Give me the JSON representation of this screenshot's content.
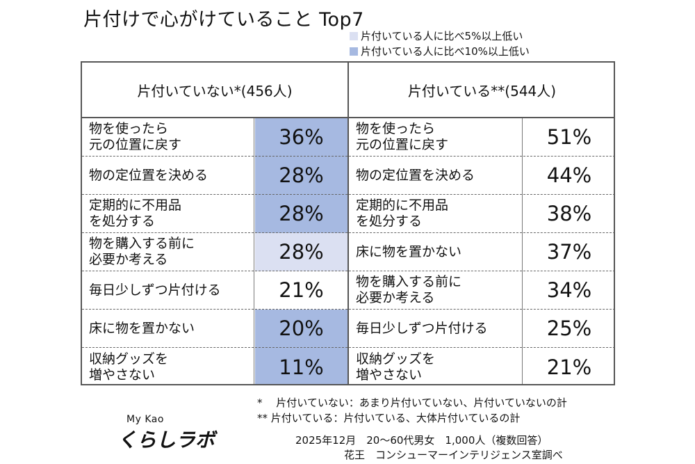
{
  "title": "片付けで心がけていること Top7",
  "legend": [
    {
      "label": "片付いている人に比べ5%以上低い",
      "color": "#dbe0f2"
    },
    {
      "label": "片付いている人に比べ10%以上低い",
      "color": "#a6b9e1"
    }
  ],
  "colors": {
    "none": "#ffffff",
    "light": "#dbe0f2",
    "strong": "#a6b9e1"
  },
  "chart_data": {
    "type": "table",
    "title": "片付けで心がけていること Top7",
    "groups": [
      {
        "header": "片付いていない*(456人)",
        "rows": [
          {
            "label": "物を使ったら\n元の位置に戻す",
            "value": 36,
            "text": "36%",
            "highlight": "strong"
          },
          {
            "label": "物の定位置を決める",
            "value": 28,
            "text": "28%",
            "highlight": "strong"
          },
          {
            "label": "定期的に不用品\nを処分する",
            "value": 28,
            "text": "28%",
            "highlight": "strong"
          },
          {
            "label": "物を購入する前に\n必要か考える",
            "value": 28,
            "text": "28%",
            "highlight": "light"
          },
          {
            "label": "毎日少しずつ片付ける",
            "value": 21,
            "text": "21%",
            "highlight": "none"
          },
          {
            "label": "床に物を置かない",
            "value": 20,
            "text": "20%",
            "highlight": "strong"
          },
          {
            "label": "収納グッズを\n増やさない",
            "value": 11,
            "text": "11%",
            "highlight": "strong"
          }
        ]
      },
      {
        "header": "片付いている**(544人)",
        "rows": [
          {
            "label": "物を使ったら\n元の位置に戻す",
            "value": 51,
            "text": "51%",
            "highlight": "none"
          },
          {
            "label": "物の定位置を決める",
            "value": 44,
            "text": "44%",
            "highlight": "none"
          },
          {
            "label": "定期的に不用品\nを処分する",
            "value": 38,
            "text": "38%",
            "highlight": "none"
          },
          {
            "label": "床に物を置かない",
            "value": 37,
            "text": "37%",
            "highlight": "none"
          },
          {
            "label": "物を購入する前に\n必要か考える",
            "value": 34,
            "text": "34%",
            "highlight": "none"
          },
          {
            "label": "毎日少しずつ片付ける",
            "value": 25,
            "text": "25%",
            "highlight": "none"
          },
          {
            "label": "収納グッズを\n増やさない",
            "value": 21,
            "text": "21%",
            "highlight": "none"
          }
        ]
      }
    ]
  },
  "notes": [
    "*　 片付いていない：あまり片付いていない、片付いていないの計",
    "**  片付いている：片付いている、大体片付いているの計"
  ],
  "survey": "2025年12月　20～60代男女　1,000人（複数回答）",
  "source": "花王　コンシューマーインテリジェンス室調べ",
  "logo": {
    "top": "My Kao",
    "main": "くらしラボ"
  }
}
